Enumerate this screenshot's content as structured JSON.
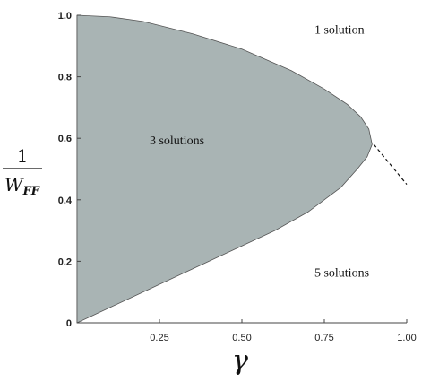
{
  "chart_data": {
    "type": "area",
    "x_ticks": [
      {
        "value": 0.25,
        "label": "0.25"
      },
      {
        "value": 0.5,
        "label": "0.50"
      },
      {
        "value": 0.75,
        "label": "0.75"
      },
      {
        "value": 1.0,
        "label": "1.00"
      }
    ],
    "y_ticks": [
      {
        "value": 0,
        "label": "0"
      },
      {
        "value": 0.2,
        "label": "0.2"
      },
      {
        "value": 0.4,
        "label": "0.4"
      },
      {
        "value": 0.6,
        "label": "0.6"
      },
      {
        "value": 0.8,
        "label": "0.8"
      },
      {
        "value": 1.0,
        "label": "1.0"
      }
    ],
    "xlim": [
      0,
      1.0
    ],
    "ylim": [
      0,
      1.0
    ],
    "xlabel": "γ",
    "ylabel": {
      "numerator": "1",
      "denominator": "W",
      "subscript": "FF"
    },
    "region": {
      "name": "3 solutions",
      "color": "#a9b4b4",
      "boundary": [
        {
          "x": 0.0,
          "y": 0.0
        },
        {
          "x": 0.1,
          "y": 0.05
        },
        {
          "x": 0.2,
          "y": 0.1
        },
        {
          "x": 0.3,
          "y": 0.15
        },
        {
          "x": 0.4,
          "y": 0.2
        },
        {
          "x": 0.5,
          "y": 0.25
        },
        {
          "x": 0.6,
          "y": 0.3
        },
        {
          "x": 0.7,
          "y": 0.36
        },
        {
          "x": 0.8,
          "y": 0.44
        },
        {
          "x": 0.85,
          "y": 0.5
        },
        {
          "x": 0.88,
          "y": 0.54
        },
        {
          "x": 0.895,
          "y": 0.58
        },
        {
          "x": 0.885,
          "y": 0.63
        },
        {
          "x": 0.86,
          "y": 0.67
        },
        {
          "x": 0.82,
          "y": 0.71
        },
        {
          "x": 0.75,
          "y": 0.76
        },
        {
          "x": 0.65,
          "y": 0.82
        },
        {
          "x": 0.5,
          "y": 0.89
        },
        {
          "x": 0.35,
          "y": 0.94
        },
        {
          "x": 0.2,
          "y": 0.98
        },
        {
          "x": 0.1,
          "y": 0.995
        },
        {
          "x": 0.0,
          "y": 1.0
        }
      ]
    },
    "dashed_line": [
      {
        "x": 0.9,
        "y": 0.58
      },
      {
        "x": 1.0,
        "y": 0.45
      }
    ],
    "annotations": [
      {
        "text": "1 solution",
        "x": 0.72,
        "y": 0.94
      },
      {
        "text": "3 solutions",
        "x": 0.22,
        "y": 0.58
      },
      {
        "text": "5 solutions",
        "x": 0.72,
        "y": 0.15
      }
    ]
  }
}
